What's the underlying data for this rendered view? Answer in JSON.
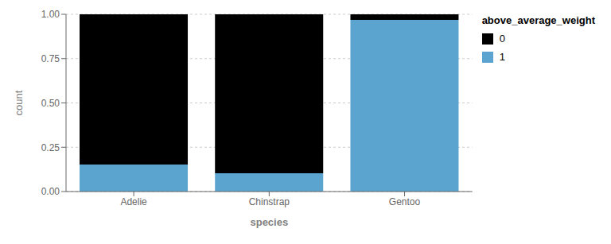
{
  "chart_data": {
    "type": "bar",
    "stacked": true,
    "categories": [
      "Adelie",
      "Chinstrap",
      "Gentoo"
    ],
    "series": [
      {
        "name": "1",
        "color": "#5ba4cf",
        "values": [
          0.152,
          0.103,
          0.969
        ]
      },
      {
        "name": "0",
        "color": "#000000",
        "values": [
          0.848,
          0.897,
          0.031
        ]
      }
    ],
    "xlabel": "species",
    "ylabel": "count",
    "legend_title": "above_average_weight",
    "legend": "right",
    "ylim": [
      0,
      1.0
    ],
    "yticks": [
      {
        "value": 0,
        "label": "0.00"
      },
      0.25,
      {
        "value": 0.5,
        "label": "0.50"
      },
      0.75,
      {
        "value": 1.0,
        "label": "1.00"
      }
    ],
    "grid": true
  }
}
